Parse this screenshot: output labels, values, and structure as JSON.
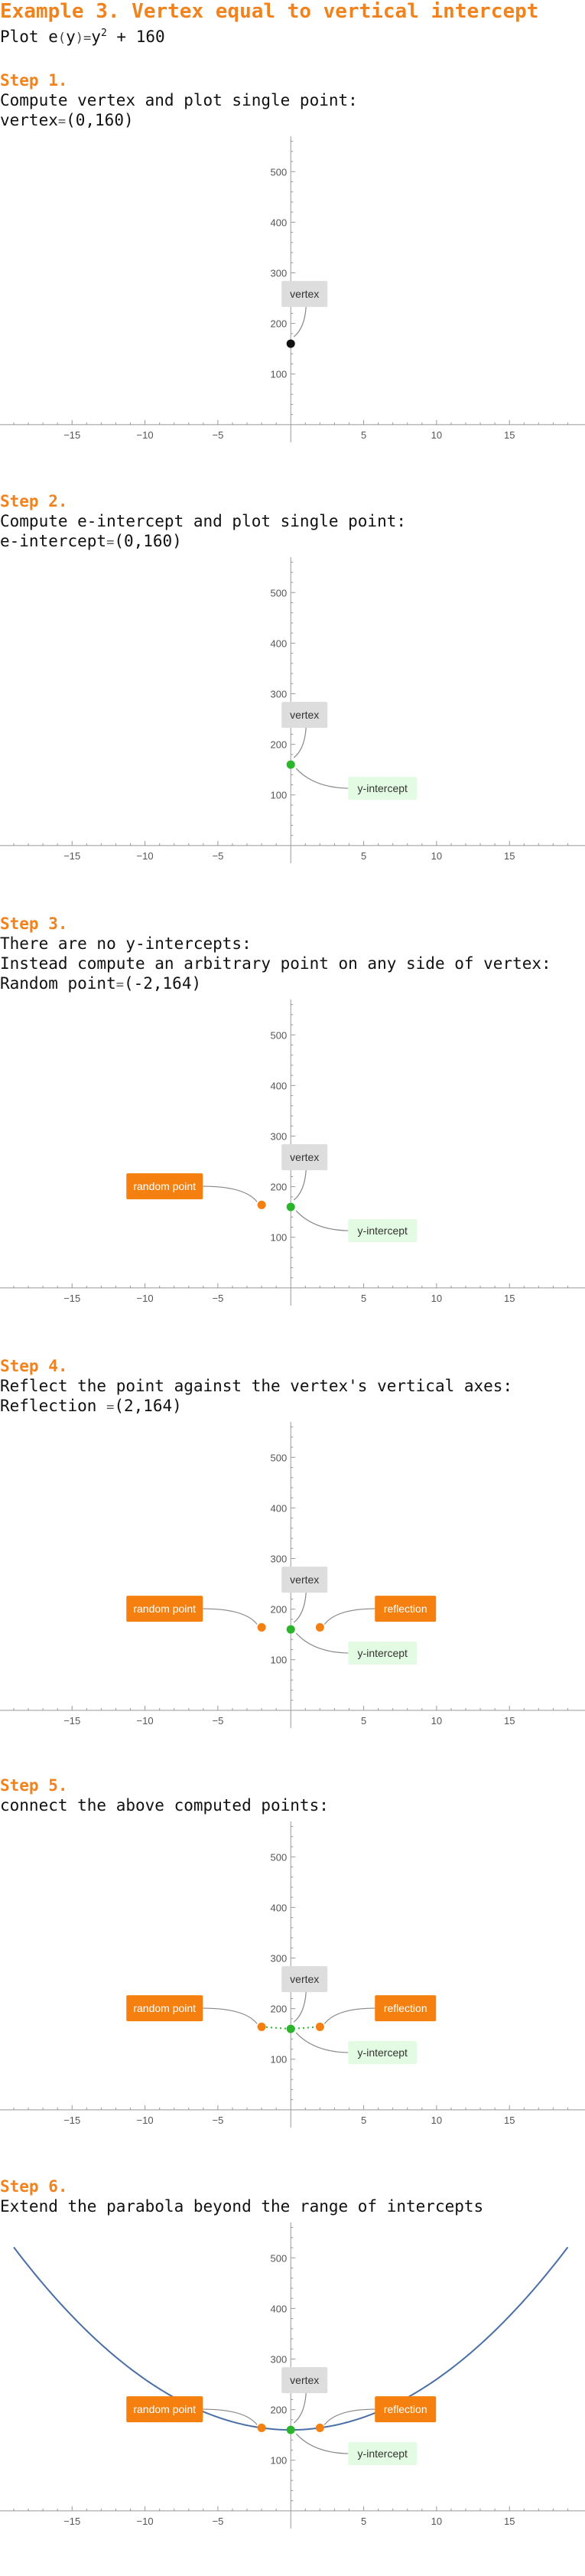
{
  "title": "Example 3. Vertex equal to vertical intercept",
  "plot_line": {
    "prefix": "Plot ",
    "func": "e",
    "lp": "(",
    "var": "y",
    "rp": ")",
    "eq": "=",
    "base": "y",
    "exp": "2",
    "rest": " + 160"
  },
  "steps": [
    {
      "heading": "Step 1.",
      "lines": [
        {
          "text": "Compute vertex and plot single point:"
        },
        {
          "label": "vertex",
          "eq": "=",
          "value": "(0,160)"
        }
      ]
    },
    {
      "heading": "Step 2.",
      "lines": [
        {
          "text": "Compute e-intercept and plot single point:"
        },
        {
          "label": "e-intercept",
          "eq": "=",
          "value": "(0,160)"
        }
      ]
    },
    {
      "heading": "Step 3.",
      "lines": [
        {
          "text": "There are no y-intercepts:"
        },
        {
          "text": "Instead compute an arbitrary point on any side of vertex:"
        },
        {
          "label": "Random point",
          "eq": "=",
          "value": "(-2,164)"
        }
      ]
    },
    {
      "heading": "Step 4.",
      "lines": [
        {
          "text": "Reflect the point against the vertex's vertical axes:"
        },
        {
          "label": "Reflection ",
          "eq": "=",
          "value": "(2,164)"
        }
      ]
    },
    {
      "heading": "Step 5.",
      "lines": [
        {
          "text": "connect the above computed points:"
        }
      ]
    },
    {
      "heading": "Step 6.",
      "lines": [
        {
          "text": "Extend the parabola beyond the range of intercepts"
        }
      ]
    }
  ],
  "labels": {
    "vertex": "vertex",
    "intercept": "y-intercept",
    "random": "random point",
    "reflection": "reflection"
  },
  "colors": {
    "title": "#f0831e",
    "orange": "#f5800f",
    "green": "#2bb52b",
    "vertex_dot": "#111111",
    "curve": "#4a6fa5",
    "vertex_label_bg": "#dddddd",
    "intercept_label_bg": "#e3fbe3"
  },
  "chart_data": [
    {
      "type": "scatter",
      "xlim": [
        -19,
        19.5
      ],
      "ylim": [
        -35,
        570
      ],
      "x_ticks": [
        -15,
        -10,
        -5,
        5,
        10,
        15
      ],
      "y_ticks": [
        100,
        200,
        300,
        400,
        500
      ],
      "series": [
        {
          "points": [
            [
              0,
              160
            ]
          ]
        }
      ],
      "annotations": [
        "vertex"
      ]
    },
    {
      "type": "scatter",
      "xlim": [
        -19,
        19.5
      ],
      "ylim": [
        -35,
        570
      ],
      "x_ticks": [
        -15,
        -10,
        -5,
        5,
        10,
        15
      ],
      "y_ticks": [
        100,
        200,
        300,
        400,
        500
      ],
      "series": [
        {
          "points": [
            [
              0,
              160
            ]
          ]
        }
      ],
      "annotations": [
        "vertex",
        "y-intercept"
      ]
    },
    {
      "type": "scatter",
      "xlim": [
        -19,
        19.5
      ],
      "ylim": [
        -35,
        570
      ],
      "x_ticks": [
        -15,
        -10,
        -5,
        5,
        10,
        15
      ],
      "y_ticks": [
        100,
        200,
        300,
        400,
        500
      ],
      "series": [
        {
          "points": [
            [
              0,
              160
            ],
            [
              -2,
              164
            ]
          ]
        }
      ],
      "annotations": [
        "vertex",
        "y-intercept",
        "random point"
      ]
    },
    {
      "type": "scatter",
      "xlim": [
        -19,
        19.5
      ],
      "ylim": [
        -35,
        570
      ],
      "x_ticks": [
        -15,
        -10,
        -5,
        5,
        10,
        15
      ],
      "y_ticks": [
        100,
        200,
        300,
        400,
        500
      ],
      "series": [
        {
          "points": [
            [
              0,
              160
            ],
            [
              -2,
              164
            ],
            [
              2,
              164
            ]
          ]
        }
      ],
      "annotations": [
        "vertex",
        "y-intercept",
        "random point",
        "reflection"
      ]
    },
    {
      "type": "line",
      "xlim": [
        -19,
        19.5
      ],
      "ylim": [
        -35,
        570
      ],
      "x_ticks": [
        -15,
        -10,
        -5,
        5,
        10,
        15
      ],
      "y_ticks": [
        100,
        200,
        300,
        400,
        500
      ],
      "series": [
        {
          "points": [
            [
              -2,
              164
            ],
            [
              0,
              160
            ],
            [
              2,
              164
            ]
          ],
          "style": "dotted"
        }
      ],
      "annotations": [
        "vertex",
        "y-intercept",
        "random point",
        "reflection"
      ]
    },
    {
      "type": "line",
      "xlim": [
        -19,
        19.5
      ],
      "ylim": [
        -35,
        570
      ],
      "x_ticks": [
        -15,
        -10,
        -5,
        5,
        10,
        15
      ],
      "y_ticks": [
        100,
        200,
        300,
        400,
        500
      ],
      "series": [
        {
          "function": "y^2 + 160",
          "domain": [
            -19,
            19
          ]
        },
        {
          "points": [
            [
              -2,
              164
            ],
            [
              0,
              160
            ],
            [
              2,
              164
            ]
          ]
        }
      ],
      "annotations": [
        "vertex",
        "y-intercept",
        "random point",
        "reflection"
      ]
    }
  ]
}
